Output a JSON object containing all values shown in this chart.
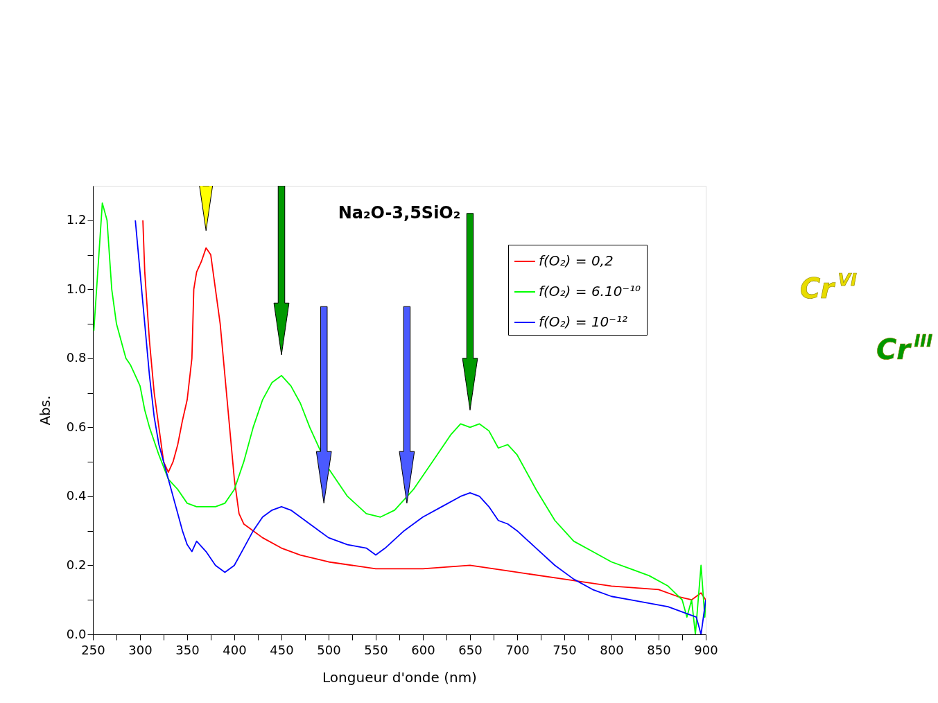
{
  "chart_data": {
    "type": "line",
    "title": "Na₂O-3,5SiO₂",
    "xlabel": "Longueur d'onde (nm)",
    "ylabel": "Abs.",
    "xlim": [
      250,
      900
    ],
    "ylim": [
      0,
      1.3
    ],
    "xticks": [
      250,
      {
        "value": 275,
        "label": null
      },
      300,
      {
        "value": 325,
        "label": null
      },
      350,
      {
        "value": 375,
        "label": null
      },
      400,
      {
        "value": 425,
        "label": null
      },
      450,
      {
        "value": 475,
        "label": null
      },
      500,
      {
        "value": 525,
        "label": null
      },
      550,
      {
        "value": 575,
        "label": null
      },
      600,
      {
        "value": 625,
        "label": null
      },
      650,
      {
        "value": 675,
        "label": null
      },
      700,
      {
        "value": 725,
        "label": null
      },
      750,
      {
        "value": 775,
        "label": null
      },
      800,
      {
        "value": 825,
        "label": null
      },
      850,
      {
        "value": 875,
        "label": null
      },
      900
    ],
    "yticks": [
      {
        "value": 0,
        "label": "0.0"
      },
      {
        "value": 0.1,
        "label": null
      },
      0.2,
      {
        "value": 0.3,
        "label": null
      },
      0.4,
      {
        "value": 0.5,
        "label": null
      },
      0.6,
      {
        "value": 0.7,
        "label": null
      },
      0.8,
      {
        "value": 0.9,
        "label": null
      },
      {
        "value": 1,
        "label": "1.0"
      },
      {
        "value": 1.1,
        "label": null
      },
      1.2
    ],
    "grid": false,
    "legend": "top right",
    "marker": "none",
    "line_style": "solid",
    "annotations": [
      "Cr$^{VI}$",
      "Cr$^{III}$"
    ],
    "series": [
      {
        "name": "f(O₂) = 0,2",
        "color": "#ff0000",
        "x": [
          303,
          305,
          310,
          315,
          320,
          325,
          330,
          335,
          340,
          345,
          350,
          355,
          357,
          360,
          365,
          370,
          375,
          380,
          385,
          390,
          395,
          400,
          405,
          410,
          420,
          430,
          450,
          470,
          500,
          550,
          600,
          650,
          700,
          750,
          800,
          850,
          870,
          885,
          895,
          900
        ],
        "values": [
          1.2,
          1.05,
          0.85,
          0.7,
          0.6,
          0.5,
          0.47,
          0.5,
          0.55,
          0.62,
          0.68,
          0.8,
          1.0,
          1.05,
          1.08,
          1.12,
          1.1,
          1.0,
          0.9,
          0.75,
          0.6,
          0.45,
          0.35,
          0.32,
          0.3,
          0.28,
          0.25,
          0.23,
          0.21,
          0.19,
          0.19,
          0.2,
          0.18,
          0.16,
          0.14,
          0.13,
          0.11,
          0.1,
          0.12,
          0.1
        ]
      },
      {
        "name": "f(O₂) = 6.10⁻¹⁰",
        "color": "#00ff00",
        "x": [
          251,
          260,
          265,
          270,
          275,
          280,
          285,
          290,
          295,
          300,
          305,
          310,
          320,
          330,
          340,
          350,
          360,
          380,
          390,
          400,
          410,
          420,
          430,
          440,
          450,
          460,
          470,
          480,
          500,
          520,
          540,
          555,
          570,
          590,
          610,
          630,
          640,
          650,
          660,
          670,
          680,
          690,
          700,
          720,
          740,
          760,
          780,
          800,
          820,
          840,
          860,
          875,
          880,
          885,
          889,
          895,
          899,
          900
        ],
        "values": [
          0.88,
          1.25,
          1.2,
          1.0,
          0.9,
          0.85,
          0.8,
          0.78,
          0.75,
          0.72,
          0.65,
          0.6,
          0.52,
          0.45,
          0.42,
          0.38,
          0.37,
          0.37,
          0.38,
          0.42,
          0.5,
          0.6,
          0.68,
          0.73,
          0.75,
          0.72,
          0.67,
          0.6,
          0.48,
          0.4,
          0.35,
          0.34,
          0.36,
          0.42,
          0.5,
          0.58,
          0.61,
          0.6,
          0.61,
          0.59,
          0.54,
          0.55,
          0.52,
          0.42,
          0.33,
          0.27,
          0.24,
          0.21,
          0.19,
          0.17,
          0.14,
          0.1,
          0.05,
          0.1,
          0.0,
          0.2,
          0.05,
          0.1
        ]
      },
      {
        "name": "f(O₂) = 10⁻¹²",
        "color": "#0000ff",
        "x": [
          295,
          300,
          305,
          310,
          315,
          320,
          330,
          340,
          345,
          350,
          355,
          360,
          370,
          380,
          390,
          400,
          410,
          420,
          430,
          440,
          450,
          460,
          470,
          480,
          490,
          500,
          520,
          540,
          550,
          560,
          580,
          600,
          620,
          640,
          650,
          660,
          670,
          680,
          690,
          700,
          720,
          740,
          760,
          780,
          800,
          820,
          840,
          860,
          880,
          890,
          895,
          900
        ],
        "values": [
          1.2,
          1.05,
          0.9,
          0.75,
          0.63,
          0.55,
          0.45,
          0.35,
          0.3,
          0.26,
          0.24,
          0.27,
          0.24,
          0.2,
          0.18,
          0.2,
          0.25,
          0.3,
          0.34,
          0.36,
          0.37,
          0.36,
          0.34,
          0.32,
          0.3,
          0.28,
          0.26,
          0.25,
          0.23,
          0.25,
          0.3,
          0.34,
          0.37,
          0.4,
          0.41,
          0.4,
          0.37,
          0.33,
          0.32,
          0.3,
          0.25,
          0.2,
          0.16,
          0.13,
          0.11,
          0.1,
          0.09,
          0.08,
          0.06,
          0.05,
          0.0,
          0.1
        ]
      }
    ]
  }
}
